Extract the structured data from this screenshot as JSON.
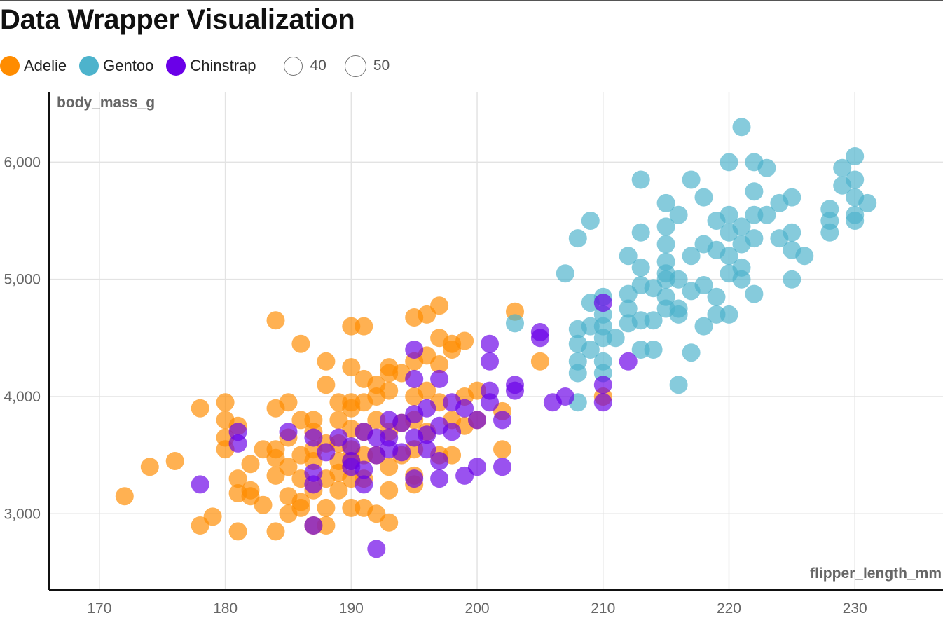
{
  "chart_data": {
    "type": "scatter",
    "title": "Data Wrapper Visualization",
    "xlabel": "flipper_length_mm",
    "ylabel": "body_mass_g",
    "xlim": [
      166,
      237
    ],
    "ylim": [
      2350,
      6600
    ],
    "xticks": [
      170,
      180,
      190,
      200,
      210,
      220,
      230
    ],
    "yticks": [
      3000,
      4000,
      5000,
      6000
    ],
    "xtick_labels": [
      "170",
      "180",
      "190",
      "200",
      "210",
      "220",
      "230"
    ],
    "ytick_labels": [
      "3,000",
      "4,000",
      "5,000",
      "6,000"
    ],
    "grid": true,
    "legend_position": "top-left",
    "size_legend": [
      {
        "label": "40",
        "value": 40
      },
      {
        "label": "50",
        "value": 50
      }
    ],
    "series": [
      {
        "name": "Adelie",
        "color": "#ff8c00",
        "points": [
          [
            172,
            3150
          ],
          [
            174,
            3400
          ],
          [
            176,
            3450
          ],
          [
            178,
            3900
          ],
          [
            178,
            2900
          ],
          [
            179,
            2975
          ],
          [
            180,
            3950
          ],
          [
            180,
            3800
          ],
          [
            180,
            3650
          ],
          [
            180,
            3550
          ],
          [
            181,
            3750
          ],
          [
            181,
            3300
          ],
          [
            181,
            3175
          ],
          [
            181,
            2850
          ],
          [
            182,
            3200
          ],
          [
            182,
            3150
          ],
          [
            182,
            3425
          ],
          [
            183,
            3550
          ],
          [
            183,
            3075
          ],
          [
            184,
            4650
          ],
          [
            184,
            3900
          ],
          [
            184,
            3550
          ],
          [
            184,
            3475
          ],
          [
            184,
            3325
          ],
          [
            184,
            2850
          ],
          [
            185,
            3950
          ],
          [
            185,
            3650
          ],
          [
            185,
            3400
          ],
          [
            185,
            3150
          ],
          [
            185,
            3000
          ],
          [
            186,
            4450
          ],
          [
            186,
            3800
          ],
          [
            186,
            3500
          ],
          [
            186,
            3300
          ],
          [
            186,
            3100
          ],
          [
            186,
            3050
          ],
          [
            187,
            3800
          ],
          [
            187,
            3700
          ],
          [
            187,
            3550
          ],
          [
            187,
            3450
          ],
          [
            187,
            3200
          ],
          [
            187,
            2900
          ],
          [
            188,
            4300
          ],
          [
            188,
            4100
          ],
          [
            188,
            3600
          ],
          [
            188,
            3300
          ],
          [
            188,
            3050
          ],
          [
            188,
            2900
          ],
          [
            189,
            3950
          ],
          [
            189,
            3800
          ],
          [
            189,
            3600
          ],
          [
            189,
            3450
          ],
          [
            189,
            3350
          ],
          [
            189,
            3200
          ],
          [
            190,
            4600
          ],
          [
            190,
            4250
          ],
          [
            190,
            3950
          ],
          [
            190,
            3900
          ],
          [
            190,
            3725
          ],
          [
            190,
            3550
          ],
          [
            190,
            3450
          ],
          [
            190,
            3300
          ],
          [
            190,
            3050
          ],
          [
            191,
            4600
          ],
          [
            191,
            4150
          ],
          [
            191,
            3950
          ],
          [
            191,
            3700
          ],
          [
            191,
            3500
          ],
          [
            191,
            3300
          ],
          [
            191,
            3050
          ],
          [
            192,
            4100
          ],
          [
            192,
            4000
          ],
          [
            192,
            3800
          ],
          [
            192,
            3500
          ],
          [
            192,
            3000
          ],
          [
            193,
            4250
          ],
          [
            193,
            4200
          ],
          [
            193,
            4050
          ],
          [
            193,
            3700
          ],
          [
            193,
            3400
          ],
          [
            193,
            3200
          ],
          [
            193,
            2925
          ],
          [
            194,
            4200
          ],
          [
            194,
            3775
          ],
          [
            194,
            3500
          ],
          [
            195,
            4675
          ],
          [
            195,
            4300
          ],
          [
            195,
            4000
          ],
          [
            195,
            3800
          ],
          [
            195,
            3550
          ],
          [
            195,
            3325
          ],
          [
            195,
            3250
          ],
          [
            196,
            4700
          ],
          [
            196,
            4350
          ],
          [
            196,
            4050
          ],
          [
            196,
            3700
          ],
          [
            197,
            4775
          ],
          [
            197,
            4500
          ],
          [
            197,
            4275
          ],
          [
            197,
            3950
          ],
          [
            197,
            3500
          ],
          [
            198,
            4450
          ],
          [
            198,
            4400
          ],
          [
            198,
            3800
          ],
          [
            198,
            3500
          ],
          [
            199,
            4475
          ],
          [
            199,
            4000
          ],
          [
            199,
            3750
          ],
          [
            200,
            4050
          ],
          [
            200,
            3800
          ],
          [
            202,
            3875
          ],
          [
            202,
            3550
          ],
          [
            203,
            4725
          ],
          [
            205,
            4300
          ],
          [
            210,
            4000
          ]
        ]
      },
      {
        "name": "Gentoo",
        "color": "#4db3cc",
        "points": [
          [
            203,
            4625
          ],
          [
            207,
            5050
          ],
          [
            208,
            5350
          ],
          [
            208,
            4575
          ],
          [
            208,
            4450
          ],
          [
            208,
            4300
          ],
          [
            208,
            4200
          ],
          [
            208,
            3950
          ],
          [
            209,
            5500
          ],
          [
            209,
            4800
          ],
          [
            209,
            4600
          ],
          [
            209,
            4400
          ],
          [
            210,
            4850
          ],
          [
            210,
            4700
          ],
          [
            210,
            4600
          ],
          [
            210,
            4500
          ],
          [
            210,
            4300
          ],
          [
            210,
            4200
          ],
          [
            211,
            4500
          ],
          [
            212,
            5200
          ],
          [
            212,
            4875
          ],
          [
            212,
            4750
          ],
          [
            212,
            4625
          ],
          [
            213,
            5850
          ],
          [
            213,
            5400
          ],
          [
            213,
            5100
          ],
          [
            213,
            4950
          ],
          [
            213,
            4650
          ],
          [
            213,
            4400
          ],
          [
            214,
            4925
          ],
          [
            214,
            4650
          ],
          [
            214,
            4400
          ],
          [
            215,
            5650
          ],
          [
            215,
            5450
          ],
          [
            215,
            5300
          ],
          [
            215,
            5150
          ],
          [
            215,
            5050
          ],
          [
            215,
            5000
          ],
          [
            215,
            4850
          ],
          [
            215,
            4750
          ],
          [
            216,
            5550
          ],
          [
            216,
            5000
          ],
          [
            216,
            4750
          ],
          [
            216,
            4700
          ],
          [
            216,
            4100
          ],
          [
            217,
            5850
          ],
          [
            217,
            5200
          ],
          [
            217,
            4900
          ],
          [
            217,
            4375
          ],
          [
            218,
            5700
          ],
          [
            218,
            5300
          ],
          [
            218,
            4950
          ],
          [
            218,
            4600
          ],
          [
            219,
            5500
          ],
          [
            219,
            5250
          ],
          [
            219,
            4850
          ],
          [
            219,
            4700
          ],
          [
            220,
            6000
          ],
          [
            220,
            5550
          ],
          [
            220,
            5400
          ],
          [
            220,
            5200
          ],
          [
            220,
            5050
          ],
          [
            220,
            4700
          ],
          [
            221,
            6300
          ],
          [
            221,
            5450
          ],
          [
            221,
            5300
          ],
          [
            221,
            5100
          ],
          [
            221,
            5000
          ],
          [
            222,
            6000
          ],
          [
            222,
            5750
          ],
          [
            222,
            5550
          ],
          [
            222,
            5350
          ],
          [
            222,
            4875
          ],
          [
            223,
            5950
          ],
          [
            223,
            5550
          ],
          [
            224,
            5650
          ],
          [
            224,
            5350
          ],
          [
            225,
            5700
          ],
          [
            225,
            5400
          ],
          [
            225,
            5250
          ],
          [
            225,
            5000
          ],
          [
            226,
            5200
          ],
          [
            228,
            5600
          ],
          [
            228,
            5500
          ],
          [
            228,
            5400
          ],
          [
            229,
            5950
          ],
          [
            229,
            5800
          ],
          [
            230,
            6050
          ],
          [
            230,
            5850
          ],
          [
            230,
            5700
          ],
          [
            230,
            5550
          ],
          [
            230,
            5500
          ],
          [
            231,
            5650
          ]
        ]
      },
      {
        "name": "Chinstrap",
        "color": "#6a00e8",
        "points": [
          [
            178,
            3250
          ],
          [
            181,
            3700
          ],
          [
            181,
            3600
          ],
          [
            185,
            3700
          ],
          [
            187,
            3650
          ],
          [
            187,
            3350
          ],
          [
            187,
            3250
          ],
          [
            187,
            2900
          ],
          [
            188,
            3525
          ],
          [
            189,
            3650
          ],
          [
            190,
            3575
          ],
          [
            190,
            3450
          ],
          [
            190,
            3400
          ],
          [
            191,
            3700
          ],
          [
            191,
            3375
          ],
          [
            191,
            3250
          ],
          [
            192,
            3650
          ],
          [
            192,
            3500
          ],
          [
            192,
            2700
          ],
          [
            193,
            3800
          ],
          [
            193,
            3650
          ],
          [
            193,
            3550
          ],
          [
            194,
            3775
          ],
          [
            194,
            3525
          ],
          [
            195,
            4400
          ],
          [
            195,
            4150
          ],
          [
            195,
            3850
          ],
          [
            195,
            3650
          ],
          [
            195,
            3300
          ],
          [
            196,
            3900
          ],
          [
            196,
            3675
          ],
          [
            196,
            3550
          ],
          [
            197,
            4150
          ],
          [
            197,
            3750
          ],
          [
            197,
            3450
          ],
          [
            197,
            3300
          ],
          [
            198,
            3950
          ],
          [
            198,
            3700
          ],
          [
            199,
            3900
          ],
          [
            199,
            3325
          ],
          [
            200,
            3800
          ],
          [
            200,
            3400
          ],
          [
            201,
            4450
          ],
          [
            201,
            4300
          ],
          [
            201,
            4050
          ],
          [
            201,
            3950
          ],
          [
            202,
            3800
          ],
          [
            202,
            3400
          ],
          [
            203,
            4100
          ],
          [
            203,
            4050
          ],
          [
            205,
            4550
          ],
          [
            205,
            4500
          ],
          [
            206,
            3950
          ],
          [
            207,
            4000
          ],
          [
            210,
            4800
          ],
          [
            210,
            4100
          ],
          [
            210,
            3950
          ],
          [
            212,
            4300
          ]
        ]
      }
    ]
  }
}
